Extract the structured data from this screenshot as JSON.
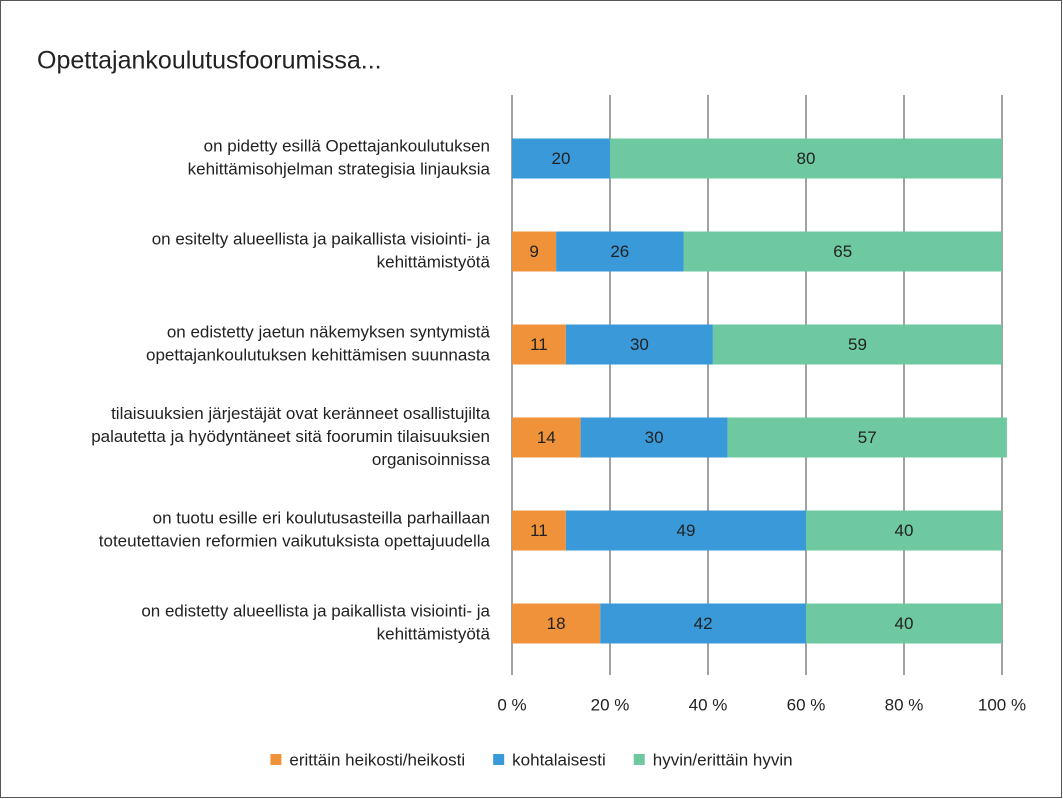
{
  "chart_data": {
    "type": "stacked-barh",
    "title": "Opettajankoulutusfoorumissa...",
    "categories": [
      [
        "on pidetty esillä Opettajankoulutuksen",
        "kehittämisohjelman strategisia linjauksia"
      ],
      [
        "on esitelty alueellista ja paikallista visiointi- ja",
        "kehittämistyötä"
      ],
      [
        "on edistetty jaetun näkemyksen syntymistä",
        "opettajankoulutuksen kehittämisen suunnasta"
      ],
      [
        "tilaisuuksien järjestäjät ovat keränneet osallistujilta",
        "palautetta ja hyödyntäneet sitä foorumin tilaisuuksien",
        "organisoinnissa"
      ],
      [
        "on tuotu esille eri koulutusasteilla parhaillaan",
        "toteutettavien reformien vaikutuksista opettajuudella"
      ],
      [
        "on edistetty alueellista ja paikallista visiointi- ja",
        "kehittämistyötä"
      ]
    ],
    "series": [
      {
        "name": "erittäin heikosti/heikosti",
        "color": "#f0923a",
        "values": [
          null,
          9,
          11,
          14,
          11,
          18
        ]
      },
      {
        "name": "kohtalaisesti",
        "color": "#3a9ad9",
        "values": [
          20,
          26,
          30,
          30,
          49,
          42
        ]
      },
      {
        "name": "hyvin/erittäin hyvin",
        "color": "#6fc9a0",
        "values": [
          80,
          65,
          59,
          57,
          40,
          40
        ]
      }
    ],
    "xlim": [
      0,
      100
    ],
    "xticks": [
      {
        "value": 0,
        "label": "0 %"
      },
      {
        "value": 20,
        "label": "20 %"
      },
      {
        "value": 40,
        "label": "40 %"
      },
      {
        "value": 60,
        "label": "60 %"
      },
      {
        "value": 80,
        "label": "80 %"
      },
      {
        "value": 100,
        "label": "100 %"
      }
    ],
    "grid": true,
    "legend": "bottom"
  }
}
